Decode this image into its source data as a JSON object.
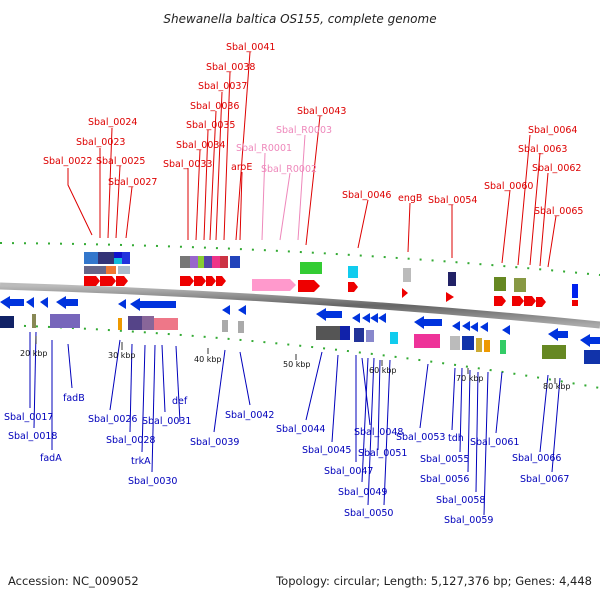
{
  "title": "Shewanella baltica OS155, complete genome",
  "accession": "Accession: NC_009052",
  "summary": "Topology: circular; Length: 5,127,376 bp; Genes: 4,448",
  "ruler": [
    "20 kbp",
    "30 kbp",
    "40 kbp",
    "50 kbp",
    "60 kbp",
    "70 kbp",
    "80 kbp"
  ],
  "top_labels": [
    "Sbal_0041",
    "Sbal_0038",
    "Sbal_0037",
    "Sbal_0036",
    "Sbal_0043",
    "Sbal_0024",
    "Sbal_0035",
    "Sbal_R0003",
    "Sbal_0023",
    "Sbal_0034",
    "Sbal_R0001",
    "Sbal_0022",
    "Sbal_0025",
    "Sbal_0033",
    "aroE",
    "Sbal_R0002",
    "Sbal_0027",
    "Sbal_0064",
    "Sbal_0063",
    "Sbal_0062",
    "Sbal_0060",
    "Sbal_0046",
    "engB",
    "Sbal_0054",
    "Sbal_0065"
  ],
  "bottom_labels": [
    "fadB",
    "Sbal_0017",
    "Sbal_0018",
    "fadA",
    "Sbal_0026",
    "Sbal_0028",
    "trkA",
    "Sbal_0030",
    "Sbal_0031",
    "def",
    "Sbal_0039",
    "Sbal_0042",
    "Sbal_0044",
    "Sbal_0045",
    "Sbal_0048",
    "Sbal_0047",
    "Sbal_0049",
    "Sbal_0050",
    "Sbal_0051",
    "Sbal_0053",
    "tdh",
    "Sbal_0055",
    "Sbal_0056",
    "Sbal_0058",
    "Sbal_0059",
    "Sbal_0061",
    "Sbal_0066",
    "Sbal_0067"
  ]
}
